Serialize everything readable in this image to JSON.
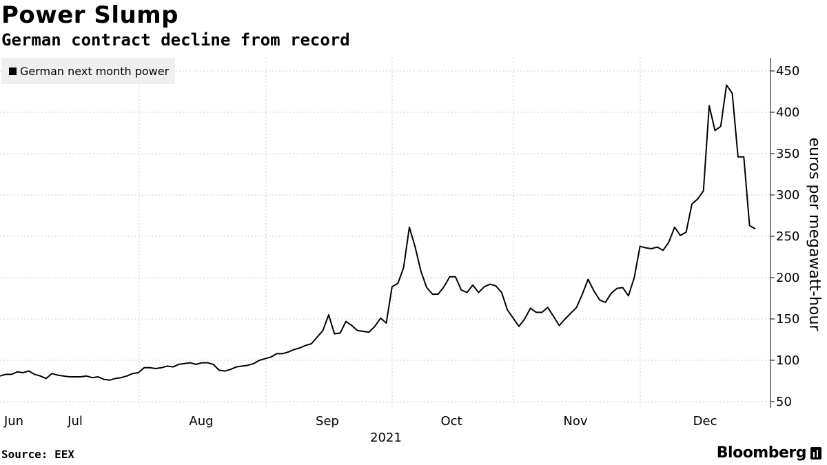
{
  "chart_data": {
    "type": "line",
    "title": "Power Slump",
    "subtitle": "German contract decline from record",
    "ylabel": "euros per megawatt-hour",
    "xlabel": "2021",
    "ylim": [
      40,
      460
    ],
    "y_ticks": [
      50,
      100,
      150,
      200,
      250,
      300,
      350,
      400,
      450
    ],
    "x_ticks": [
      "Jun",
      "Jul",
      "Aug",
      "Sep",
      "Oct",
      "Nov",
      "Dec"
    ],
    "legend": "top-left",
    "grid": "dashed",
    "series": [
      {
        "name": "German next month power",
        "color": "#000000",
        "values": [
          81,
          83,
          83,
          86,
          85,
          87,
          83,
          81,
          78,
          84,
          82,
          81,
          80,
          80,
          80,
          81,
          79,
          80,
          77,
          76,
          78,
          79,
          81,
          84,
          85,
          91,
          91,
          90,
          91,
          93,
          92,
          95,
          96,
          97,
          95,
          97,
          97,
          95,
          88,
          87,
          89,
          92,
          93,
          94,
          96,
          100,
          102,
          104,
          108,
          108,
          110,
          113,
          115,
          118,
          120,
          128,
          136,
          155,
          132,
          133,
          147,
          142,
          136,
          135,
          134,
          141,
          151,
          145,
          189,
          193,
          212,
          261,
          237,
          208,
          188,
          180,
          180,
          189,
          201,
          201,
          185,
          182,
          191,
          182,
          189,
          192,
          190,
          182,
          161,
          151,
          141,
          150,
          163,
          158,
          158,
          164,
          153,
          142,
          150,
          157,
          164,
          180,
          198,
          184,
          173,
          170,
          181,
          187,
          188,
          178,
          200,
          238,
          236,
          235,
          237,
          233,
          243,
          261,
          251,
          255,
          289,
          295,
          305,
          408,
          378,
          383,
          433,
          423,
          346,
          346,
          263,
          259
        ]
      }
    ],
    "source": "Source: EEX",
    "brand": "Bloomberg"
  }
}
